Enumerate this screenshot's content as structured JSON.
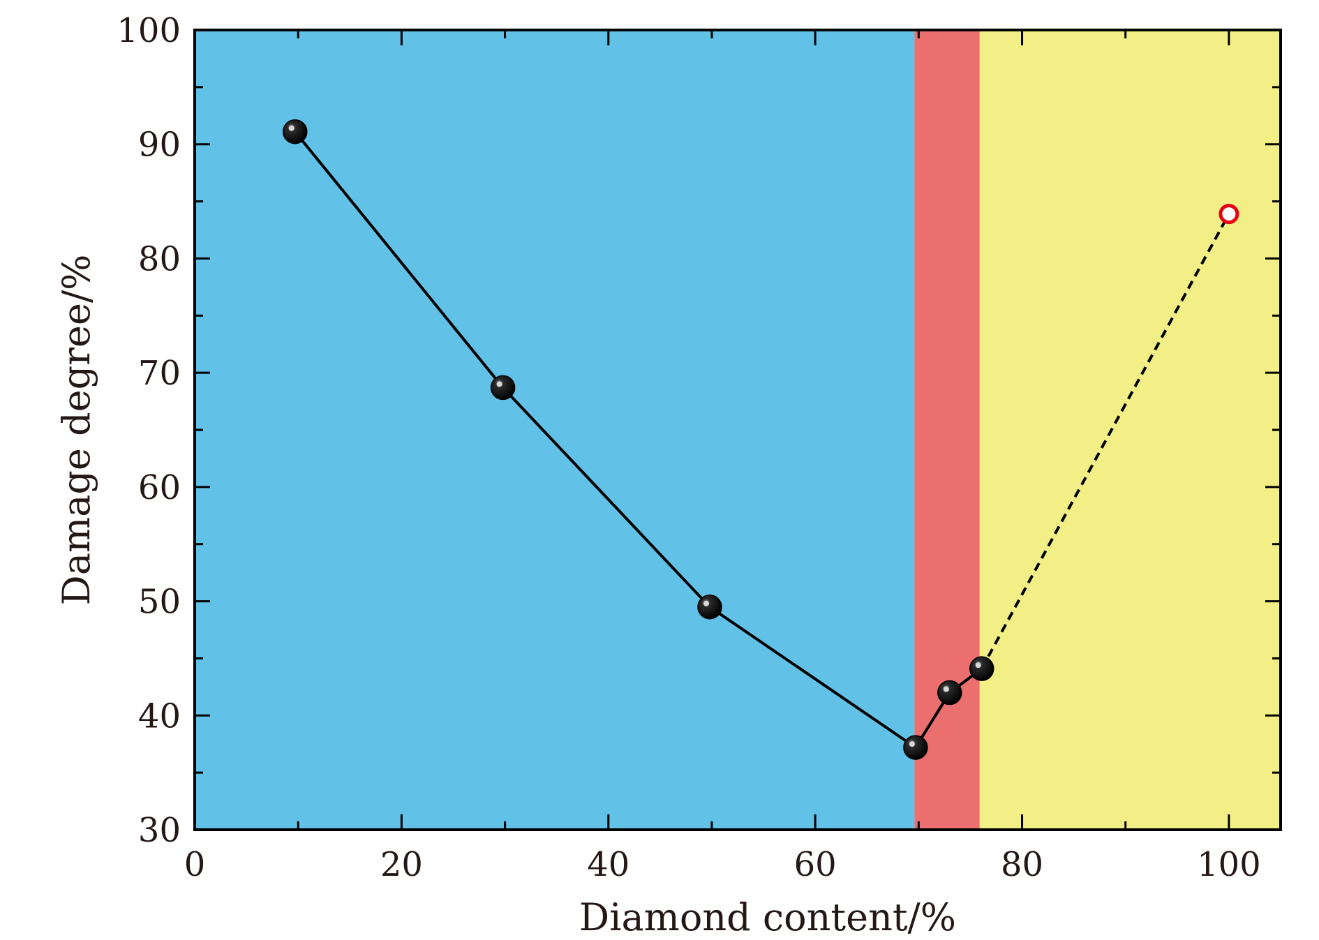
{
  "chart_data": {
    "type": "line",
    "xlabel": "Diamond content/%",
    "ylabel": "Damage degree/%",
    "xlim": [
      0,
      105
    ],
    "ylim": [
      30,
      100
    ],
    "x_ticks": [
      "0",
      "20",
      "40",
      "60",
      "80",
      "100"
    ],
    "y_ticks": [
      "30",
      "40",
      "50",
      "60",
      "70",
      "80",
      "90",
      "100"
    ],
    "regions": [
      {
        "x": [
          0,
          69.6
        ],
        "color": "#61c1e7"
      },
      {
        "x": [
          69.6,
          75.9
        ],
        "color": "#eb6f6f"
      },
      {
        "x": [
          75.9,
          105
        ],
        "color": "#f1ef85"
      }
    ],
    "series": [
      {
        "style": "solid",
        "marker": "filled-black-circle",
        "points": [
          [
            9.7,
            91.1
          ],
          [
            29.8,
            68.7
          ],
          [
            49.8,
            49.5
          ],
          [
            69.7,
            37.2
          ],
          [
            73.0,
            42.0
          ],
          [
            76.1,
            44.1
          ]
        ]
      },
      {
        "style": "dashed",
        "marker": "none",
        "points": [
          [
            76.1,
            44.1
          ],
          [
            100,
            83.9
          ]
        ]
      },
      {
        "style": "none",
        "marker": "hollow-red-circle",
        "points": [
          [
            100,
            83.9
          ]
        ]
      }
    ]
  }
}
